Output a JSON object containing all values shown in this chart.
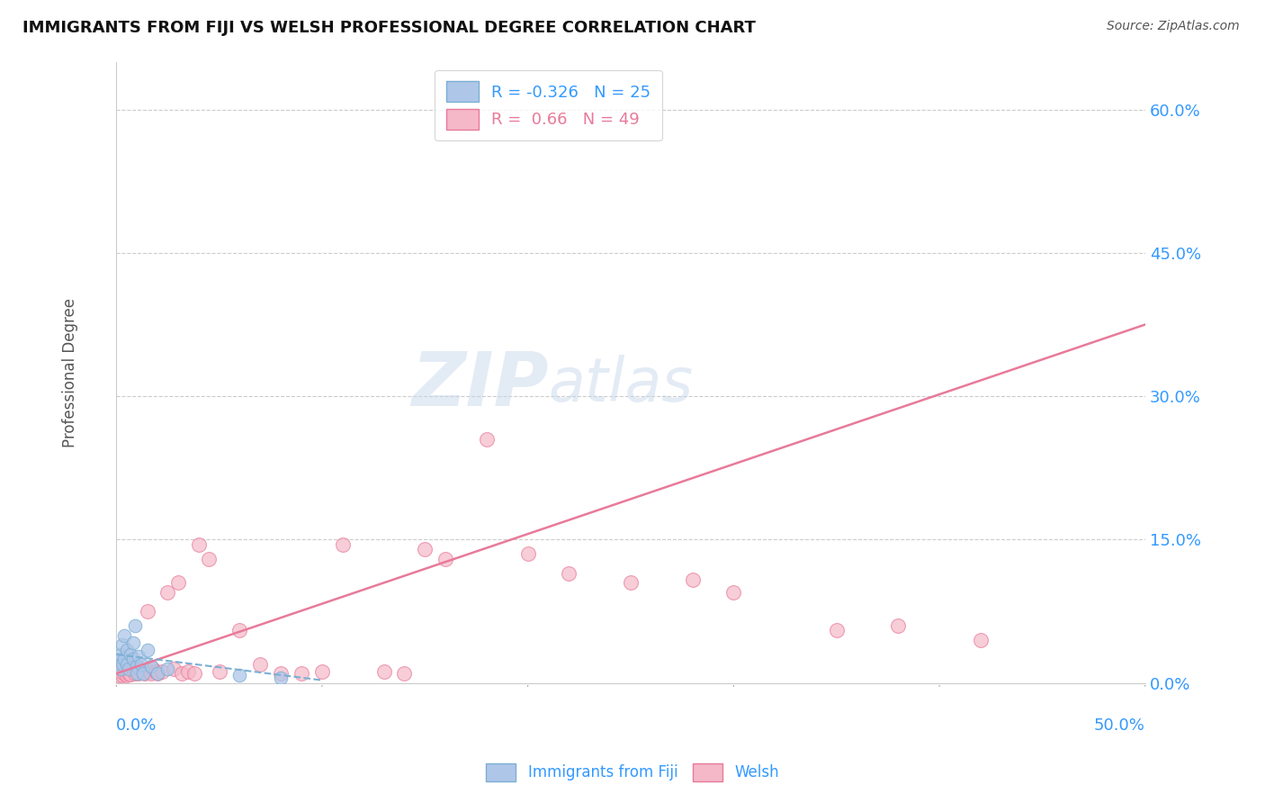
{
  "title": "IMMIGRANTS FROM FIJI VS WELSH PROFESSIONAL DEGREE CORRELATION CHART",
  "source_text": "Source: ZipAtlas.com",
  "ylabel": "Professional Degree",
  "xlim": [
    0.0,
    0.5
  ],
  "ylim": [
    0.0,
    0.65
  ],
  "yticks": [
    0.0,
    0.15,
    0.3,
    0.45,
    0.6
  ],
  "fiji_R": -0.326,
  "fiji_N": 25,
  "welsh_R": 0.66,
  "welsh_N": 49,
  "fiji_color": "#aec6e8",
  "fiji_edge_color": "#7bafd4",
  "welsh_color": "#f4b8c8",
  "welsh_edge_color": "#e87a9a",
  "welsh_line_color": "#e87a9a",
  "fiji_line_color": "#7bafd4",
  "watermark_color": "#c8d8ec",
  "tick_color": "#3399ff",
  "welsh_line_x": [
    0.0,
    0.5
  ],
  "welsh_line_y": [
    0.01,
    0.375
  ],
  "fiji_line_x": [
    0.0,
    0.1
  ],
  "fiji_line_y": [
    0.03,
    0.003
  ],
  "fiji_scatter_x": [
    0.001,
    0.002,
    0.002,
    0.003,
    0.003,
    0.004,
    0.004,
    0.005,
    0.005,
    0.006,
    0.007,
    0.008,
    0.008,
    0.009,
    0.01,
    0.01,
    0.011,
    0.012,
    0.013,
    0.015,
    0.017,
    0.02,
    0.025,
    0.06,
    0.08
  ],
  "fiji_scatter_y": [
    0.025,
    0.015,
    0.03,
    0.02,
    0.04,
    0.025,
    0.05,
    0.035,
    0.02,
    0.015,
    0.03,
    0.025,
    0.042,
    0.06,
    0.018,
    0.01,
    0.028,
    0.02,
    0.01,
    0.035,
    0.018,
    0.01,
    0.015,
    0.008,
    0.005
  ],
  "welsh_scatter_x": [
    0.001,
    0.002,
    0.003,
    0.004,
    0.005,
    0.006,
    0.007,
    0.008,
    0.009,
    0.01,
    0.011,
    0.012,
    0.013,
    0.014,
    0.015,
    0.016,
    0.017,
    0.018,
    0.019,
    0.02,
    0.022,
    0.025,
    0.028,
    0.03,
    0.032,
    0.035,
    0.038,
    0.04,
    0.045,
    0.05,
    0.06,
    0.07,
    0.08,
    0.09,
    0.1,
    0.11,
    0.13,
    0.14,
    0.15,
    0.16,
    0.18,
    0.2,
    0.22,
    0.25,
    0.28,
    0.3,
    0.35,
    0.38,
    0.42
  ],
  "welsh_scatter_y": [
    0.008,
    0.012,
    0.008,
    0.01,
    0.008,
    0.01,
    0.009,
    0.015,
    0.01,
    0.012,
    0.01,
    0.012,
    0.012,
    0.01,
    0.075,
    0.012,
    0.01,
    0.015,
    0.012,
    0.01,
    0.012,
    0.095,
    0.015,
    0.105,
    0.01,
    0.012,
    0.01,
    0.145,
    0.13,
    0.012,
    0.055,
    0.02,
    0.01,
    0.01,
    0.012,
    0.145,
    0.012,
    0.01,
    0.14,
    0.13,
    0.255,
    0.135,
    0.115,
    0.105,
    0.108,
    0.095,
    0.055,
    0.06,
    0.045
  ]
}
